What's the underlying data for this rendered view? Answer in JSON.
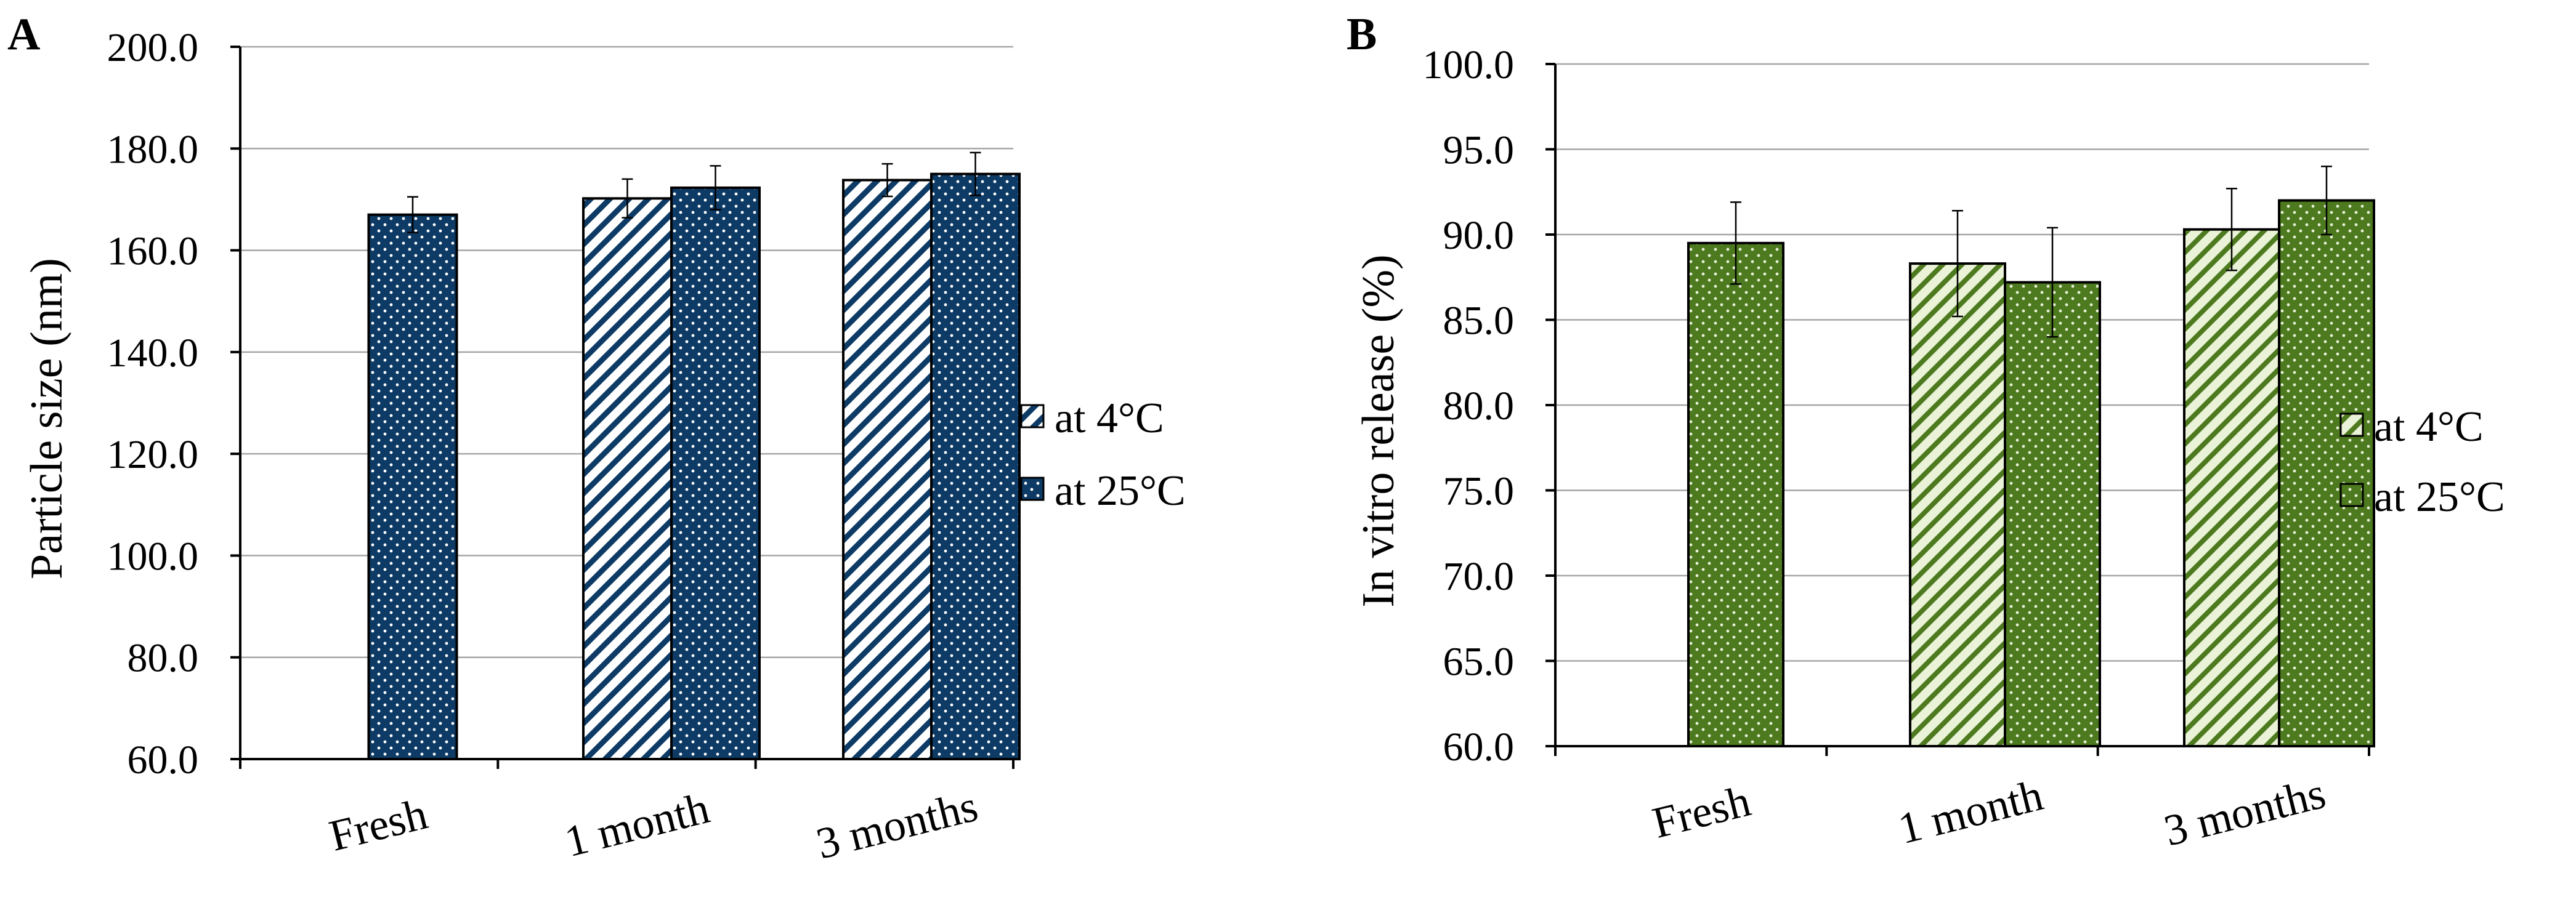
{
  "chart_data": [
    {
      "type": "bar",
      "panel_label": "A",
      "title": "",
      "xlabel": "",
      "ylabel": "Particle size (nm)",
      "ylim": [
        60,
        200
      ],
      "yticks": [
        "60.0",
        "80.0",
        "100.0",
        "120.0",
        "140.0",
        "160.0",
        "180.0",
        "200.0"
      ],
      "categories": [
        "Fresh",
        "1 month",
        "3 months"
      ],
      "grid": true,
      "legend_position": "right",
      "series": [
        {
          "name": "at 4°C",
          "values": [
            null,
            170.2,
            173.8
          ],
          "errors": [
            null,
            3.8,
            3.2
          ],
          "color": "#ffffff",
          "pattern": "diagonal-stripes",
          "pattern_color": "#0d3b66"
        },
        {
          "name": "at 25°C",
          "values": [
            167.0,
            172.3,
            175.0
          ],
          "errors": [
            3.5,
            4.3,
            4.2
          ],
          "color": "#0d3b66",
          "pattern": "dots",
          "pattern_color": "#ffffff"
        }
      ]
    },
    {
      "type": "bar",
      "panel_label": "B",
      "title": "",
      "xlabel": "",
      "ylabel": "In vitro release (%)",
      "ylim": [
        60,
        100
      ],
      "yticks": [
        "60.0",
        "65.0",
        "70.0",
        "75.0",
        "80.0",
        "85.0",
        "90.0",
        "95.0",
        "100.0"
      ],
      "categories": [
        "Fresh",
        "1 month",
        "3 months"
      ],
      "grid": true,
      "legend_position": "right",
      "series": [
        {
          "name": "at 4°C",
          "values": [
            null,
            88.3,
            90.3
          ],
          "errors": [
            null,
            3.1,
            2.4
          ],
          "color": "#eaf2d7",
          "pattern": "diagonal-stripes",
          "pattern_color": "#4d7a1f"
        },
        {
          "name": "at 25°C",
          "values": [
            89.5,
            87.2,
            92.0
          ],
          "errors": [
            2.4,
            3.2,
            2.0
          ],
          "color": "#4d7a1f",
          "pattern": "dots",
          "pattern_color": "#e8f0d8"
        }
      ]
    }
  ]
}
